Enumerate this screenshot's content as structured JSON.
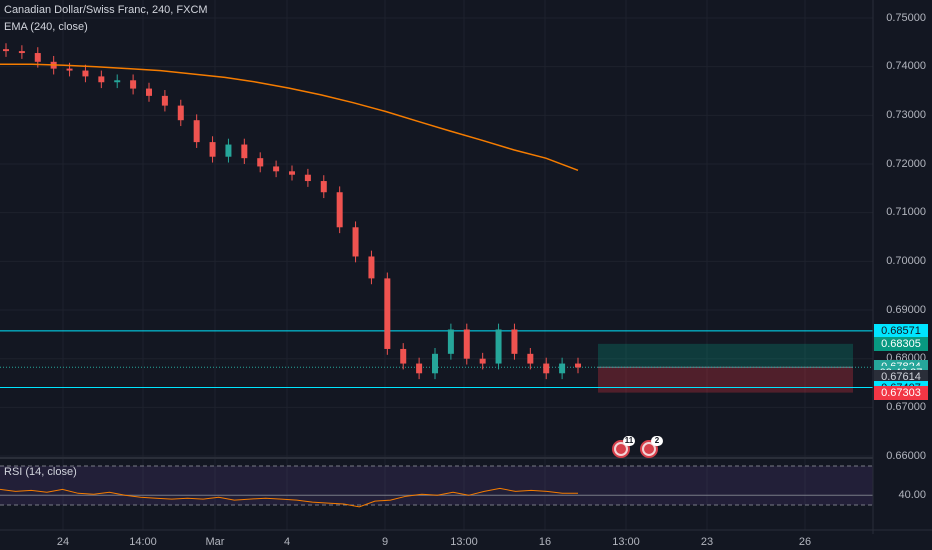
{
  "header": {
    "symbol_line": "Canadian Dollar/Swiss Franc, 240, FXCM",
    "ema_line": "EMA (240, close)",
    "rsi_line": "RSI (14, close)"
  },
  "price_axis": {
    "ticks": [
      "0.75000",
      "0.74000",
      "0.73000",
      "0.72000",
      "0.71000",
      "0.70000",
      "0.69000",
      "0.68000",
      "0.67000",
      "0.66000"
    ]
  },
  "price_tags": [
    {
      "label": "0.68571",
      "bg": "#00e5ff",
      "fg": "#131722",
      "price": 0.68571
    },
    {
      "label": "0.68305",
      "bg": "#089981",
      "fg": "#ffffff",
      "price": 0.68305
    },
    {
      "label": "0.67824",
      "bg": "#26a69a",
      "fg": "#ffffff",
      "price": 0.67824
    },
    {
      "label": "03:46:27",
      "bg": "#26a69a",
      "fg": "#ffffff",
      "price": 0.67714
    },
    {
      "label": "0.67614",
      "bg": "#2a2e39",
      "fg": "#d1d4dc",
      "price": 0.67614
    },
    {
      "label": "0.67407",
      "bg": "#00e5ff",
      "fg": "#131722",
      "price": 0.67407
    },
    {
      "label": "0.67303",
      "bg": "#f23645",
      "fg": "#ffffff",
      "price": 0.67303
    }
  ],
  "rsi_axis": {
    "label": "40.00"
  },
  "time_axis": {
    "ticks": [
      "24",
      "14:00",
      "Mar",
      "4",
      "9",
      "13:00",
      "16",
      "13:00",
      "23",
      "26"
    ]
  },
  "events": [
    {
      "name": "economic-event-icon",
      "count": "11"
    },
    {
      "name": "economic-event-icon",
      "count": "2"
    }
  ],
  "colors": {
    "background": "#131722",
    "up": "#26a69a",
    "down": "#ef5350",
    "ema": "#f57c00",
    "level_line": "#00e5ff",
    "rsi_line": "#f57c00",
    "rsi_band": "#7e57c2"
  },
  "chart_data": {
    "type": "candlestick",
    "symbol": "CADCHF",
    "timeframe": "240",
    "price_range": [
      0.6595,
      0.7525
    ],
    "horizontal_levels": [
      0.68571,
      0.67407
    ],
    "position_tool": {
      "entry": 0.67824,
      "target": 0.68305,
      "stop": 0.67303
    },
    "ema_points": [
      0.7405,
      0.7405,
      0.7403,
      0.74,
      0.7396,
      0.7392,
      0.7385,
      0.7378,
      0.7368,
      0.7356,
      0.7342,
      0.7326,
      0.7308,
      0.7288,
      0.7268,
      0.7249,
      0.7229,
      0.7212,
      0.7187
    ],
    "closes": [
      0.7432,
      0.7428,
      0.741,
      0.7396,
      0.7392,
      0.738,
      0.7368,
      0.7372,
      0.7355,
      0.734,
      0.732,
      0.729,
      0.7245,
      0.7215,
      0.724,
      0.7212,
      0.7195,
      0.7185,
      0.7178,
      0.7165,
      0.7142,
      0.707,
      0.701,
      0.6965,
      0.682,
      0.679,
      0.677,
      0.681,
      0.686,
      0.68,
      0.679,
      0.686,
      0.681,
      0.679,
      0.677,
      0.679,
      0.6782
    ],
    "rsi_levels": [
      70,
      40,
      30
    ],
    "rsi_values": [
      46,
      44,
      45,
      43,
      46,
      42,
      41,
      43,
      40,
      38,
      37,
      36,
      37,
      36,
      38,
      35,
      36,
      37,
      36,
      35,
      33,
      32,
      31,
      28,
      34,
      35,
      39,
      41,
      40,
      43,
      40,
      44,
      47,
      44,
      45,
      44,
      42,
      42
    ]
  }
}
